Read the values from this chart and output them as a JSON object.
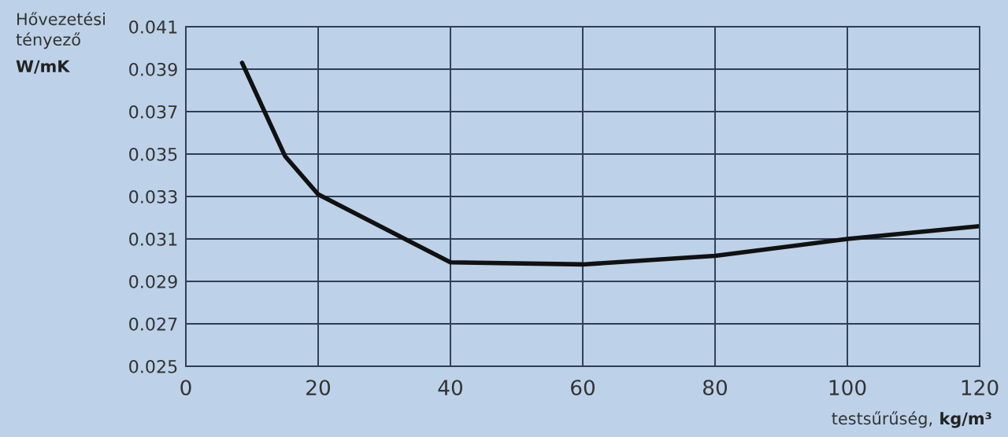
{
  "chart_data": {
    "type": "line",
    "xlabel": "testsűrűség, kg/m³",
    "ylabel": "Hővezetési tényező W/mK",
    "series": [
      {
        "color": "#111111",
        "x": [
          8.5,
          15,
          20,
          40,
          60,
          80,
          100,
          120
        ],
        "values": [
          0.0393,
          0.0349,
          0.0331,
          0.0299,
          0.0298,
          0.0302,
          0.031,
          0.0316
        ]
      }
    ],
    "xlim": [
      0,
      120
    ],
    "xticks": [
      0,
      20,
      40,
      60,
      80,
      100,
      120
    ],
    "ylim": [
      0.025,
      0.041
    ],
    "yticks": [
      0.025,
      0.027,
      0.029,
      0.031,
      0.033,
      0.035,
      0.037,
      0.039,
      0.041
    ],
    "grid": true,
    "marker": "none",
    "line_style": "solid"
  }
}
